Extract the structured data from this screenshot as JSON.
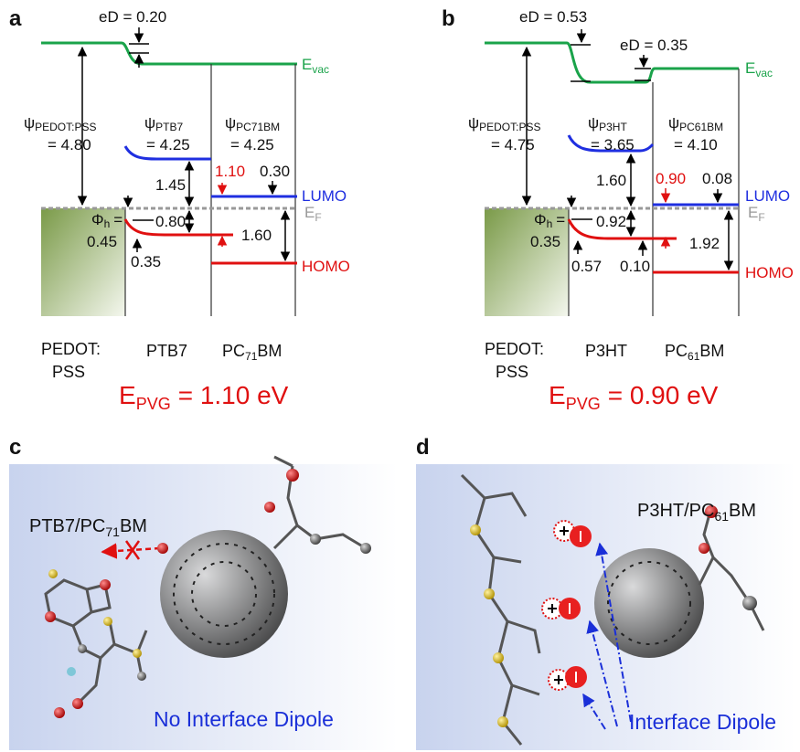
{
  "panel_a": {
    "letter": "a",
    "eD": [
      "eD = 0.20"
    ],
    "vacuum_level": {
      "text": "E",
      "subscript": "vac"
    },
    "work_functions": [
      {
        "symbol": "ψ",
        "subscript": "PEDOT:PSS",
        "value": "= 4.80"
      },
      {
        "symbol": "ψ",
        "subscript": "PTB7",
        "value": "= 4.25"
      },
      {
        "symbol": "ψ",
        "subscript": "PC71BM",
        "value": "= 4.25"
      }
    ],
    "energy_gaps": [
      "1.45",
      "0.80",
      "1.10",
      "0.30",
      "1.60",
      "0.35"
    ],
    "hole_barrier": {
      "symbol": "Φ",
      "subscript": "h",
      "equals": "=",
      "value": "0.45"
    },
    "lumo": "LUMO",
    "fermi_level": {
      "text": "E",
      "subscript": "F"
    },
    "homo": "HOMO",
    "materials": [
      {
        "lines": [
          "PEDOT:",
          "PSS"
        ]
      },
      {
        "text": "PTB7"
      },
      {
        "text": "PC",
        "subscript": "71",
        "suffix": "BM"
      }
    ],
    "pvg": {
      "text": "E",
      "subscript": "PVG",
      "value": "= 1.10 eV"
    }
  },
  "panel_b": {
    "letter": "b",
    "eD": [
      "eD = 0.53",
      "eD = 0.35"
    ],
    "vacuum_level": {
      "text": "E",
      "subscript": "vac"
    },
    "work_functions": [
      {
        "symbol": "ψ",
        "subscript": "PEDOT:PSS",
        "value": "= 4.75"
      },
      {
        "symbol": "ψ",
        "subscript": "P3HT",
        "value": "= 3.65"
      },
      {
        "symbol": "ψ",
        "subscript": "PC61BM",
        "value": "= 4.10"
      }
    ],
    "energy_gaps": [
      "1.60",
      "0.92",
      "0.90",
      "0.08",
      "1.92",
      "0.57",
      "0.10"
    ],
    "hole_barrier": {
      "symbol": "Φ",
      "subscript": "h",
      "equals": "=",
      "value": "0.35"
    },
    "lumo": "LUMO",
    "fermi_level": {
      "text": "E",
      "subscript": "F"
    },
    "homo": "HOMO",
    "materials": [
      {
        "lines": [
          "PEDOT:",
          "PSS"
        ]
      },
      {
        "text": "P3HT"
      },
      {
        "text": "PC",
        "subscript": "61",
        "suffix": "BM"
      }
    ],
    "pvg": {
      "text": "E",
      "subscript": "PVG",
      "value": "= 0.90 eV"
    }
  },
  "panel_c": {
    "letter": "c",
    "label": {
      "text": "PTB7/PC",
      "subscript": "71",
      "suffix": "BM"
    },
    "caption": "No Interface Dipole"
  },
  "panel_d": {
    "letter": "d",
    "label": {
      "text": "P3HT/PC",
      "subscript": "61",
      "suffix": "BM"
    },
    "caption": "Interface Dipole"
  }
}
